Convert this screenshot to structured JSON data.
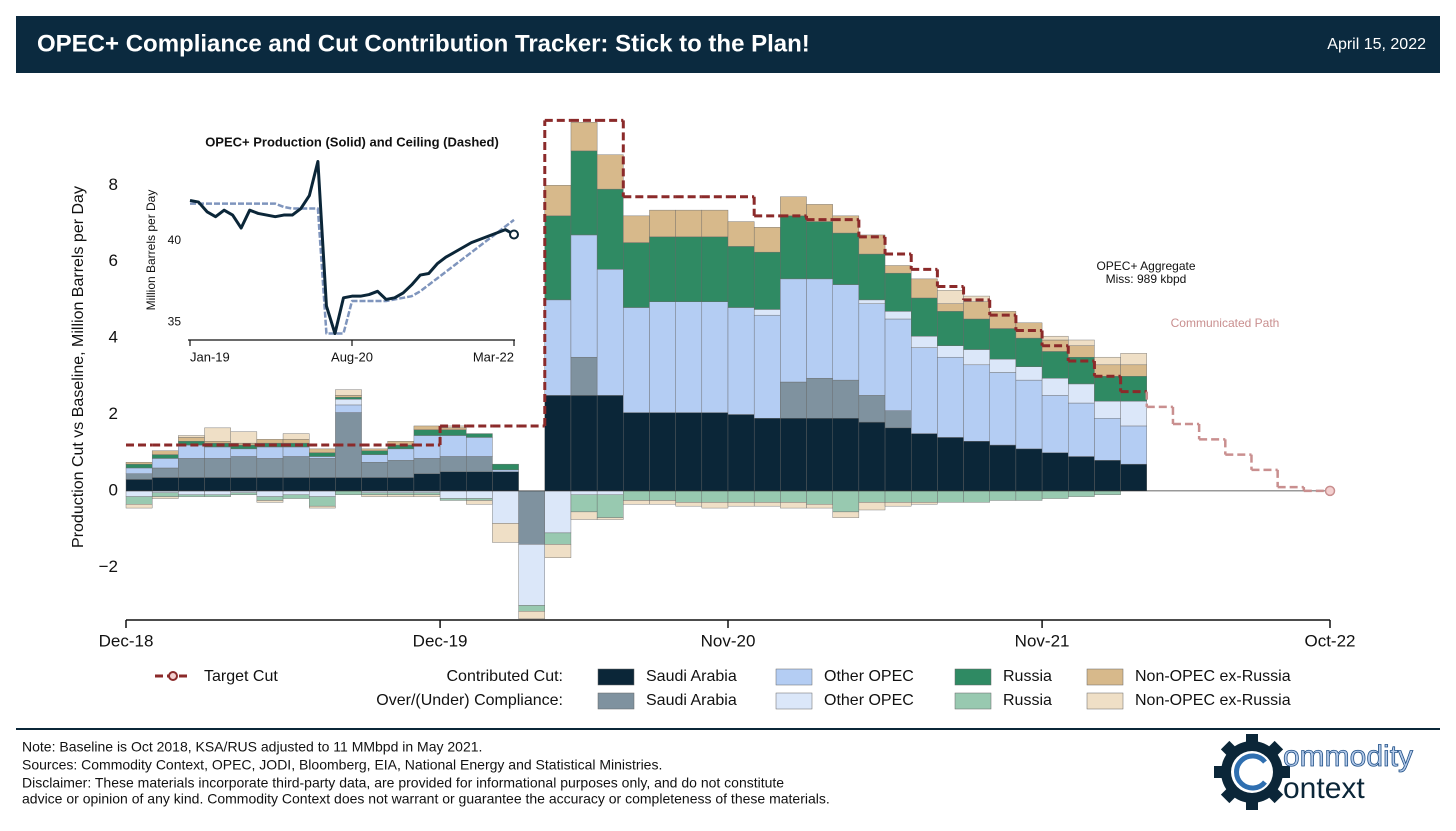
{
  "header": {
    "title": "OPEC+ Compliance and Cut Contribution Tracker: Stick to the Plan!",
    "date": "April 15, 2022"
  },
  "chart_data": {
    "type": "bar",
    "stacked": true,
    "ylabel": "Production Cut vs Baseline, Million Barrels per Day",
    "x": [
      "2019-01",
      "2019-02",
      "2019-03",
      "2019-04",
      "2019-05",
      "2019-06",
      "2019-07",
      "2019-08",
      "2019-09",
      "2019-10",
      "2019-11",
      "2019-12",
      "2020-01",
      "2020-02",
      "2020-03",
      "2020-04",
      "2020-05",
      "2020-06",
      "2020-07",
      "2020-08",
      "2020-09",
      "2020-10",
      "2020-11",
      "2020-12",
      "2021-01",
      "2021-02",
      "2021-03",
      "2021-04",
      "2021-05",
      "2021-06",
      "2021-07",
      "2021-08",
      "2021-09",
      "2021-10",
      "2021-11",
      "2021-12",
      "2022-01",
      "2022-02",
      "2022-03"
    ],
    "xlim": [
      "2018-12",
      "2022-10"
    ],
    "xticks": [
      {
        "value": "2018-12",
        "label": "Dec-18"
      },
      {
        "value": "2019-12",
        "label": "Dec-19"
      },
      {
        "value": "2020-11",
        "label": "Nov-20"
      },
      {
        "value": "2021-11",
        "label": "Nov-21"
      },
      {
        "value": "2022-10",
        "label": "Oct-22"
      }
    ],
    "ylim": [
      -3.38,
      9.84
    ],
    "yticks": [
      {
        "value": -2,
        "label": "−2"
      },
      0,
      2,
      4,
      6,
      8
    ],
    "legend_rows": [
      "Contributed Cut:",
      "Over/(Under) Compliance:"
    ],
    "contributed": [
      {
        "name": "Saudi Arabia",
        "color": "#0b2638",
        "values": [
          0.3,
          0.35,
          0.35,
          0.35,
          0.35,
          0.35,
          0.35,
          0.35,
          0.35,
          0.35,
          0.35,
          0.45,
          0.5,
          0.5,
          0.5,
          0,
          2.5,
          2.5,
          2.5,
          2.05,
          2.05,
          2.05,
          2.05,
          2.0,
          1.9,
          1.9,
          1.9,
          1.9,
          1.8,
          1.65,
          1.5,
          1.4,
          1.3,
          1.2,
          1.1,
          1.0,
          0.9,
          0.8,
          0.7
        ]
      },
      {
        "name": "Other OPEC",
        "color": "#b4cdf3",
        "values": [
          0.15,
          0.25,
          0.35,
          0.3,
          0.2,
          0.3,
          0.25,
          0.05,
          0.2,
          0.2,
          0.3,
          0.6,
          0.55,
          0.5,
          0.05,
          0,
          2.5,
          3.2,
          3.3,
          2.75,
          2.9,
          2.9,
          2.9,
          2.8,
          2.7,
          2.7,
          2.6,
          2.5,
          2.4,
          2.4,
          2.25,
          2.1,
          2.0,
          1.9,
          1.8,
          1.5,
          1.4,
          1.1,
          1.0
        ]
      },
      {
        "name": "Russia",
        "color": "#2f8a63",
        "values": [
          0.1,
          0.1,
          0.1,
          0.1,
          0.1,
          0.1,
          0.1,
          0.1,
          0.05,
          0.1,
          0.1,
          0.15,
          0.15,
          0.1,
          0.15,
          0,
          2.2,
          2.2,
          2.1,
          1.7,
          1.7,
          1.7,
          1.7,
          1.6,
          1.5,
          1.65,
          1.5,
          1.35,
          1.2,
          1.0,
          1.0,
          0.9,
          0.8,
          0.8,
          0.75,
          0.7,
          0.7,
          0.65,
          0.65
        ]
      },
      {
        "name": "Non-OPEC ex-Russia",
        "color": "#d7b98b",
        "values": [
          0.05,
          0.1,
          0.1,
          0.05,
          0.05,
          0.1,
          0.1,
          0.1,
          0.05,
          0.05,
          0.1,
          0.1,
          0.05,
          0,
          0,
          0,
          0.8,
          0.75,
          0.9,
          0.7,
          0.7,
          0.7,
          0.7,
          0.65,
          0.65,
          0.5,
          0.45,
          0.45,
          0.5,
          0.2,
          0.5,
          0.2,
          0.45,
          0.45,
          0.4,
          0.3,
          0.3,
          0.3,
          0.3
        ]
      }
    ],
    "compliance": [
      {
        "name": "Saudi Arabia",
        "color": "#7f929f",
        "values": [
          0.15,
          0.25,
          0.5,
          0.5,
          0.55,
          0.5,
          0.55,
          0.5,
          1.7,
          0.4,
          0.45,
          0.4,
          0.4,
          0.4,
          0,
          -1.4,
          0,
          1.0,
          0,
          0,
          0,
          0,
          0,
          0,
          0,
          0.95,
          1.05,
          1.0,
          0.7,
          0.45,
          0,
          0,
          0,
          0,
          0,
          0,
          0,
          0,
          0
        ]
      },
      {
        "name": "Other OPEC",
        "color": "#dbe7f9",
        "values": [
          -0.15,
          -0.05,
          -0.1,
          -0.1,
          -0.05,
          -0.15,
          -0.1,
          -0.15,
          0.15,
          -0.05,
          -0.05,
          -0.05,
          -0.2,
          -0.2,
          -0.85,
          -1.6,
          -1.1,
          -0.1,
          -0.1,
          0,
          0,
          0,
          0,
          0,
          0.15,
          0,
          0,
          0,
          0.1,
          0.2,
          0.3,
          0.3,
          0.4,
          0.35,
          0.35,
          0.45,
          0.5,
          0.45,
          0.65
        ]
      },
      {
        "name": "Russia",
        "color": "#98c9b0",
        "values": [
          -0.2,
          -0.1,
          -0.05,
          -0.05,
          -0.05,
          -0.1,
          -0.1,
          -0.25,
          -0.1,
          -0.05,
          -0.05,
          -0.05,
          -0.05,
          -0.05,
          0,
          -0.15,
          -0.3,
          -0.45,
          -0.6,
          -0.25,
          -0.25,
          -0.3,
          -0.3,
          -0.3,
          -0.3,
          -0.3,
          -0.35,
          -0.55,
          -0.3,
          -0.3,
          -0.3,
          -0.3,
          -0.3,
          -0.25,
          -0.25,
          -0.2,
          -0.15,
          -0.1,
          0
        ]
      },
      {
        "name": "Non-OPEC ex-Russia",
        "color": "#efdfc6",
        "values": [
          -0.1,
          -0.05,
          0.05,
          0.35,
          0.3,
          -0.05,
          0.15,
          -0.05,
          0.15,
          -0.05,
          -0.05,
          -0.05,
          0.05,
          -0.1,
          -0.5,
          -0.2,
          -0.35,
          -0.2,
          -0.05,
          -0.1,
          -0.1,
          -0.1,
          -0.15,
          -0.1,
          -0.1,
          -0.15,
          -0.1,
          -0.15,
          -0.2,
          -0.1,
          -0.05,
          0.35,
          0.15,
          0,
          0,
          0.1,
          0.15,
          0.2,
          0.3
        ]
      }
    ],
    "target_cut": {
      "name": "Target Cut",
      "color": "#8b2a2a",
      "values": [
        1.2,
        1.2,
        1.2,
        1.2,
        1.2,
        1.2,
        1.2,
        1.2,
        1.2,
        1.2,
        1.2,
        1.2,
        1.7,
        1.7,
        1.7,
        1.7,
        9.7,
        9.7,
        9.7,
        7.7,
        7.7,
        7.7,
        7.7,
        7.7,
        7.2,
        7.2,
        7.1,
        7.1,
        6.65,
        6.2,
        5.8,
        5.35,
        5.0,
        4.6,
        4.2,
        3.8,
        3.4,
        3.0,
        2.6
      ]
    },
    "communicated_path": {
      "label": "Communicated Path",
      "color": "#c98f8f",
      "x": [
        "2022-04",
        "2022-05",
        "2022-06",
        "2022-07",
        "2022-08",
        "2022-09",
        "2022-10"
      ],
      "values": [
        2.2,
        1.75,
        1.35,
        0.95,
        0.55,
        0.1,
        0
      ]
    },
    "aggregate_note": [
      "OPEC+ Aggregate",
      "Miss: 989 kbpd"
    ],
    "inset": {
      "type": "line",
      "title": "OPEC+ Production (Solid) and Ceiling (Dashed)",
      "ylabel": "Million Barrels per Day",
      "x": [
        "2019-01",
        "2019-02",
        "2019-03",
        "2019-04",
        "2019-05",
        "2019-06",
        "2019-07",
        "2019-08",
        "2019-09",
        "2019-10",
        "2019-11",
        "2019-12",
        "2020-01",
        "2020-02",
        "2020-03",
        "2020-04",
        "2020-05",
        "2020-06",
        "2020-07",
        "2020-08",
        "2020-09",
        "2020-10",
        "2020-11",
        "2020-12",
        "2021-01",
        "2021-02",
        "2021-03",
        "2021-04",
        "2021-05",
        "2021-06",
        "2021-07",
        "2021-08",
        "2021-09",
        "2021-10",
        "2021-11",
        "2021-12",
        "2022-01",
        "2022-02",
        "2022-03"
      ],
      "xlim": [
        "2019-01",
        "2022-03"
      ],
      "xticks": [
        {
          "value": "2019-01",
          "label": "Jan-19"
        },
        {
          "value": "2020-08",
          "label": "Aug-20"
        },
        {
          "value": "2022-03",
          "label": "Mar-22"
        }
      ],
      "ylim": [
        33.9,
        45.3
      ],
      "yticks": [
        35,
        40
      ],
      "series": [
        {
          "style": "dashed",
          "color": "#7f95bd",
          "values": [
            42.3,
            42.3,
            42.3,
            42.3,
            42.3,
            42.3,
            42.3,
            42.3,
            42.3,
            42.3,
            42.3,
            42.1,
            42.0,
            42.0,
            42.0,
            42.0,
            34.3,
            34.3,
            34.3,
            36.3,
            36.3,
            36.3,
            36.3,
            36.3,
            36.4,
            36.5,
            36.6,
            36.9,
            37.3,
            37.7,
            38.1,
            38.5,
            38.9,
            39.3,
            39.7,
            40.1,
            40.5,
            40.9,
            41.3
          ]
        },
        {
          "style": "solid",
          "color": "#0b2638",
          "values": [
            42.5,
            42.4,
            41.8,
            41.5,
            41.9,
            41.6,
            40.8,
            41.9,
            41.7,
            41.6,
            41.5,
            41.6,
            41.6,
            42.0,
            42.8,
            44.9,
            36.0,
            34.3,
            36.5,
            36.6,
            36.6,
            36.7,
            36.9,
            36.4,
            36.5,
            36.8,
            37.3,
            37.9,
            38.0,
            38.6,
            39.0,
            39.3,
            39.6,
            39.9,
            40.1,
            40.3,
            40.5,
            40.7,
            40.4
          ]
        }
      ]
    }
  },
  "footer": {
    "notes": [
      "Note: Baseline is Oct 2018, KSA/RUS adjusted to 11 MMbpd in May 2021.",
      "Sources: Commodity Context, OPEC, JODI, Bloomberg, EIA, National Energy and Statistical Ministries.",
      "Disclaimer: These materials incorporate third-party data, are provided for informational purposes only, and do not constitute",
      "advice or opinion of any kind. Commodity Context does not warrant or guarantee the accuracy or completeness of these materials."
    ],
    "logo": [
      "ommodity",
      "ontext"
    ]
  }
}
